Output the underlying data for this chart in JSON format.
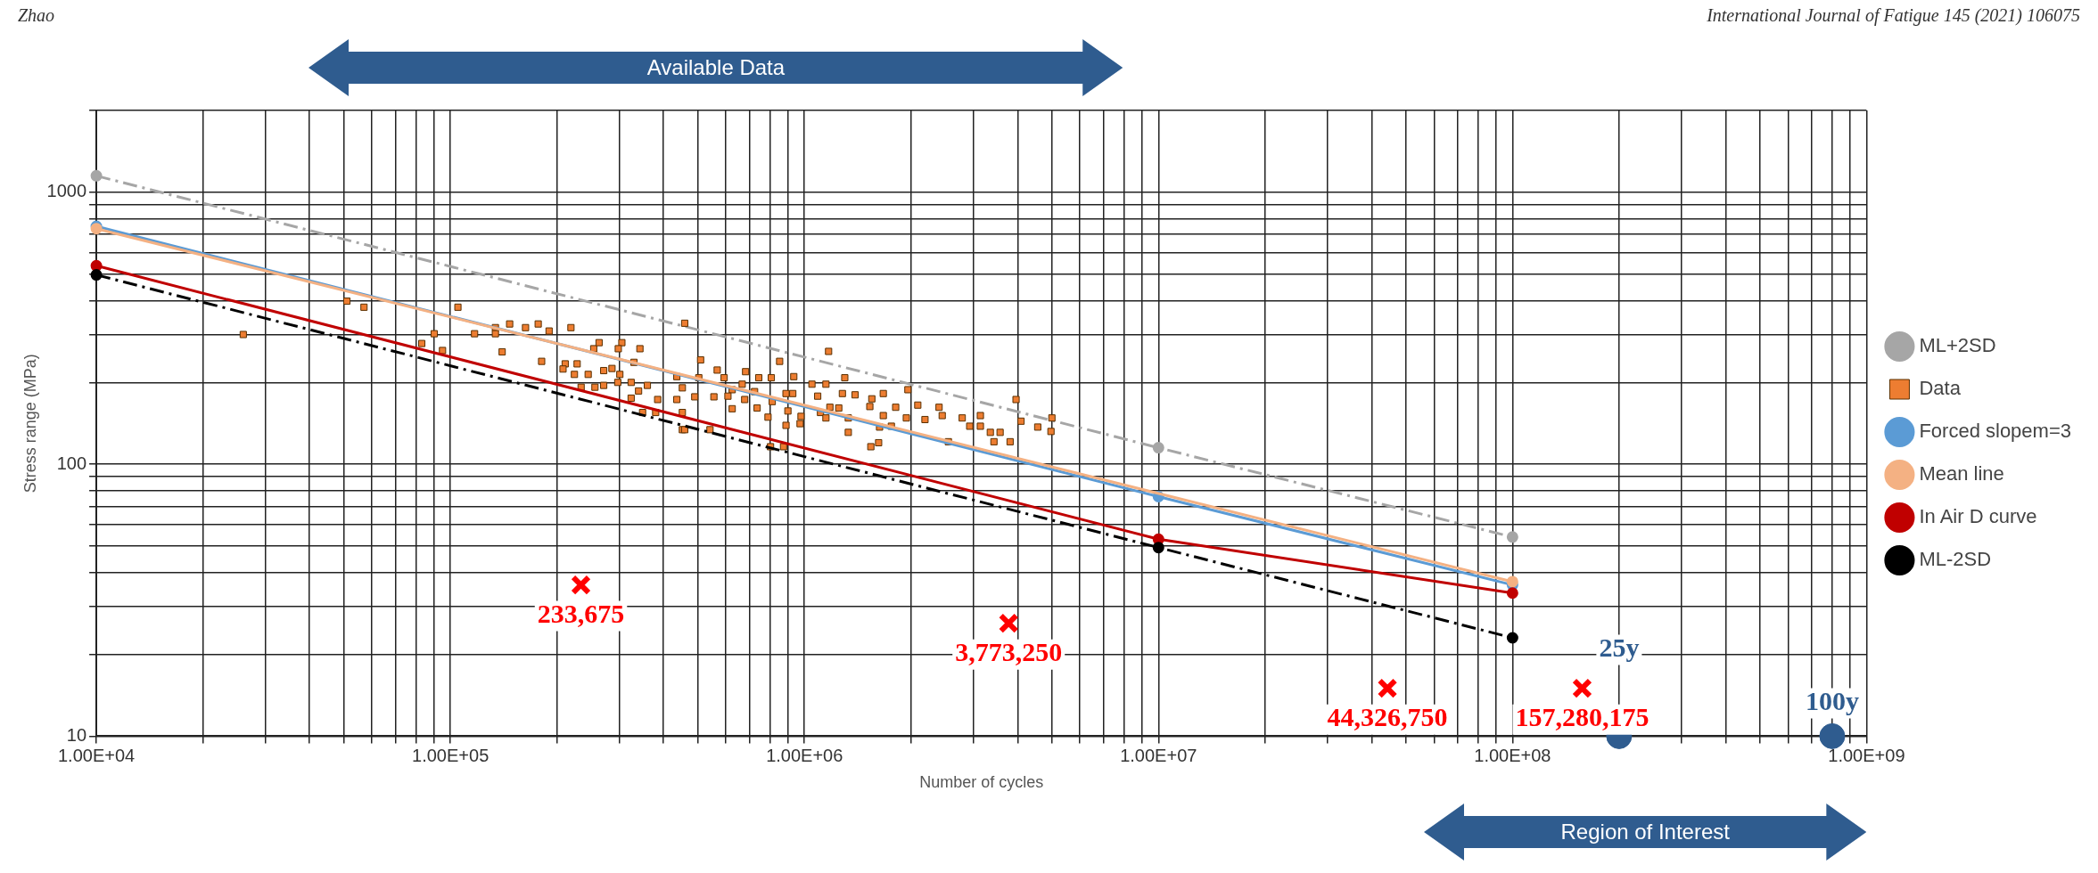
{
  "chart_data": {
    "type": "line",
    "xlabel": "Number of cycles",
    "ylabel": "Stress range (MPa)",
    "annotations": [
      "Zhao",
      "International Journal of Fatigue 145 (2021) 106075",
      "Available Data",
      "Region of Interest",
      {
        "text": "233,675",
        "x": 233675,
        "y": 36
      },
      {
        "text": "3,773,250",
        "x": 3773250,
        "y": 26
      },
      {
        "text": "44,326,750",
        "x": 44326750,
        "y": 15
      },
      {
        "text": "157,280,175",
        "x": 157280175,
        "y": 15
      },
      {
        "text": "25y",
        "x": 200000000,
        "y": 10
      },
      {
        "text": "100y",
        "x": 800000000,
        "y": 10
      }
    ],
    "log": "xy",
    "grid": true,
    "legend": "right",
    "xlim": [
      10000,
      1000000000
    ],
    "ylim": [
      10,
      2000
    ],
    "xticks": [
      {
        "value": 10000,
        "label": "1.00E+04"
      },
      {
        "value": 20000,
        "label": null
      },
      {
        "value": 30000,
        "label": null
      },
      {
        "value": 40000,
        "label": null
      },
      {
        "value": 50000,
        "label": null
      },
      {
        "value": 60000,
        "label": null
      },
      {
        "value": 70000,
        "label": null
      },
      {
        "value": 80000,
        "label": null
      },
      {
        "value": 90000,
        "label": null
      },
      {
        "value": 100000,
        "label": "1.00E+05"
      },
      {
        "value": 200000,
        "label": null
      },
      {
        "value": 300000,
        "label": null
      },
      {
        "value": 400000,
        "label": null
      },
      {
        "value": 500000,
        "label": null
      },
      {
        "value": 600000,
        "label": null
      },
      {
        "value": 700000,
        "label": null
      },
      {
        "value": 800000,
        "label": null
      },
      {
        "value": 900000,
        "label": null
      },
      {
        "value": 1000000,
        "label": "1.00E+06"
      },
      {
        "value": 2000000,
        "label": null
      },
      {
        "value": 3000000,
        "label": null
      },
      {
        "value": 4000000,
        "label": null
      },
      {
        "value": 5000000,
        "label": null
      },
      {
        "value": 6000000,
        "label": null
      },
      {
        "value": 7000000,
        "label": null
      },
      {
        "value": 8000000,
        "label": null
      },
      {
        "value": 9000000,
        "label": null
      },
      {
        "value": 10000000,
        "label": "1.00E+07"
      },
      {
        "value": 20000000,
        "label": null
      },
      {
        "value": 30000000,
        "label": null
      },
      {
        "value": 40000000,
        "label": null
      },
      {
        "value": 50000000,
        "label": null
      },
      {
        "value": 60000000,
        "label": null
      },
      {
        "value": 70000000,
        "label": null
      },
      {
        "value": 80000000,
        "label": null
      },
      {
        "value": 90000000,
        "label": null
      },
      {
        "value": 100000000,
        "label": "1.00E+08"
      },
      {
        "value": 200000000,
        "label": null
      },
      {
        "value": 300000000,
        "label": null
      },
      {
        "value": 400000000,
        "label": null
      },
      {
        "value": 500000000,
        "label": null
      },
      {
        "value": 600000000,
        "label": null
      },
      {
        "value": 700000000,
        "label": null
      },
      {
        "value": 800000000,
        "label": null
      },
      {
        "value": 900000000,
        "label": null
      },
      {
        "value": 1000000000,
        "label": "1.00E+09"
      }
    ],
    "yticks": [
      10,
      {
        "value": 20,
        "label": null
      },
      {
        "value": 30,
        "label": null
      },
      {
        "value": 40,
        "label": null
      },
      {
        "value": 50,
        "label": null
      },
      {
        "value": 60,
        "label": null
      },
      {
        "value": 70,
        "label": null
      },
      {
        "value": 80,
        "label": null
      },
      {
        "value": 90,
        "label": null
      },
      100,
      {
        "value": 200,
        "label": null
      },
      {
        "value": 300,
        "label": null
      },
      {
        "value": 400,
        "label": null
      },
      {
        "value": 500,
        "label": null
      },
      {
        "value": 600,
        "label": null
      },
      {
        "value": 700,
        "label": null
      },
      {
        "value": 800,
        "label": null
      },
      {
        "value": 900,
        "label": null
      },
      1000,
      {
        "value": 2000,
        "label": null
      }
    ],
    "series": [
      {
        "name": "ML+2SD",
        "type": "line",
        "color": "#a6a6a6",
        "line_style": "dashed",
        "marker": "circle",
        "x": [
          10000,
          10000000,
          100000000
        ],
        "values": [
          1150,
          115,
          54
        ]
      },
      {
        "name": "Data",
        "type": "scatter",
        "color": "#ed7d31",
        "marker": "square",
        "x": [
          26000,
          51000,
          57000,
          105000,
          90000,
          83000,
          95000,
          117000,
          134000,
          134000,
          147000,
          163000,
          177000,
          190000,
          219000,
          140000,
          181000,
          211000,
          228000,
          208000,
          224000,
          245000,
          234000,
          256000,
          271000,
          254000,
          263000,
          305000,
          298000,
          343000,
          330000,
          271000,
          286000,
          301000,
          297000,
          324000,
          340000,
          360000,
          324000,
          385000,
          349000,
          380000,
          452000,
          452000,
          436000,
          436000,
          459000,
          452000,
          509000,
          567000,
          682000,
          851000,
          1170000,
          933000,
          1300000,
          743000,
          806000,
          593000,
          503000,
          1150000,
          1050000,
          667000,
          625000,
          927000,
          887000,
          723000,
          1280000,
          1390000,
          1670000,
          1960000,
          490000,
          555000,
          608000,
          678000,
          1090000,
          1550000,
          3960000,
          2090000,
          2400000,
          1810000,
          1530000,
          625000,
          735000,
          811000,
          898000,
          1110000,
          1180000,
          1250000,
          789000,
          978000,
          1150000,
          1330000,
          1670000,
          1940000,
          2190000,
          2450000,
          2790000,
          3140000,
          4090000,
          5000000,
          4560000,
          4970000,
          2930000,
          3140000,
          3350000,
          3570000,
          2550000,
          3430000,
          3810000,
          1540000,
          1620000,
          1630000,
          1760000,
          1330000,
          802000,
          873000,
          541000,
          459000,
          887000,
          972000
        ],
        "values": [
          300,
          398,
          378,
          378,
          302,
          278,
          262,
          302,
          318,
          302,
          328,
          318,
          328,
          309,
          318,
          259,
          239,
          234,
          234,
          224,
          214,
          214,
          192,
          192,
          195,
          266,
          280,
          280,
          266,
          266,
          237,
          221,
          225,
          214,
          200,
          200,
          186,
          195,
          175,
          173,
          155,
          155,
          134,
          155,
          173,
          210,
          330,
          191,
          242,
          222,
          219,
          239,
          260,
          210,
          208,
          208,
          208,
          208,
          208,
          197,
          197,
          197,
          188,
          182,
          182,
          185,
          182,
          180,
          182,
          188,
          177,
          177,
          178,
          173,
          178,
          174,
          173,
          165,
          162,
          162,
          163,
          160,
          161,
          170,
          157,
          155,
          162,
          161,
          149,
          150,
          148,
          148,
          151,
          148,
          146,
          151,
          148,
          151,
          144,
          148,
          137,
          132,
          138,
          138,
          131,
          131,
          121,
          121,
          121,
          116,
          120,
          137,
          138,
          131,
          116,
          116,
          134,
          134,
          139,
          141
        ]
      },
      {
        "name": "Forced slopem=3",
        "type": "line",
        "color": "#5b9bd5",
        "marker": "circle",
        "x": [
          10000,
          10000000,
          100000000
        ],
        "values": [
          750,
          76,
          36
        ]
      },
      {
        "name": "Mean line",
        "type": "line",
        "color": "#f4b183",
        "marker": "circle",
        "x": [
          10000,
          100000000
        ],
        "values": [
          735,
          37
        ]
      },
      {
        "name": "In Air D curve",
        "type": "line",
        "color": "#c00000",
        "marker": "circle",
        "x": [
          10000,
          10000000,
          100000000
        ],
        "values": [
          537,
          53,
          33.6
        ]
      },
      {
        "name": "ML-2SD",
        "type": "line",
        "color": "#000000",
        "line_style": "dashed",
        "marker": "circle",
        "x": [
          10000,
          10000000,
          100000000
        ],
        "values": [
          497,
          49.4,
          23
        ]
      },
      {
        "type": "scatter",
        "color": "#ff0000",
        "marker": "cross",
        "x": [
          233675,
          3773250,
          44326750,
          157280175
        ],
        "values": [
          36,
          26,
          15,
          15
        ]
      },
      {
        "type": "scatter",
        "color": "#2f5c8f",
        "marker": "circle",
        "x": [
          200000000,
          800000000
        ],
        "values": [
          10,
          10
        ]
      }
    ]
  }
}
